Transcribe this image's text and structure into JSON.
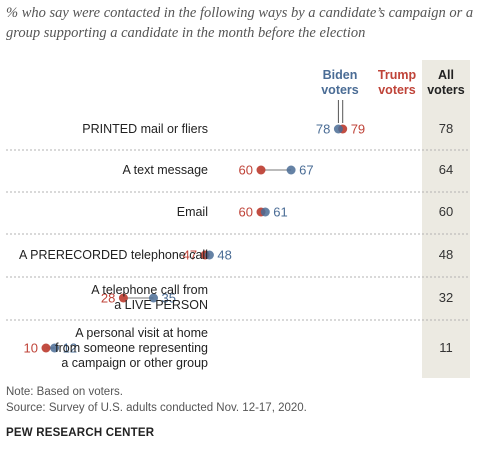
{
  "subtitle": "% who say were contacted in the following ways by a candidate’s campaign or a group supporting a candidate in the month before the election",
  "legend": {
    "biden": [
      "Biden",
      "voters"
    ],
    "trump": [
      "Trump",
      "voters"
    ],
    "all": [
      "All",
      "voters"
    ]
  },
  "colors": {
    "biden": "#4a6c95",
    "trump": "#bf4338",
    "divider": "#b3b3b3",
    "all_col": "#eceae2"
  },
  "chart_data": {
    "type": "scatter",
    "categories": [
      [
        "PRINTED mail or fliers"
      ],
      [
        "A text message"
      ],
      [
        "Email"
      ],
      [
        "A PRERECORDED telephone call"
      ],
      [
        "A telephone call from",
        "a LIVE PERSON"
      ],
      [
        "A personal visit at home",
        "from someone representing",
        "a campaign or other group"
      ]
    ],
    "series": [
      {
        "name": "Biden voters",
        "values": [
          78,
          67,
          61,
          48,
          35,
          12
        ]
      },
      {
        "name": "Trump voters",
        "values": [
          79,
          60,
          60,
          47,
          28,
          10
        ]
      },
      {
        "name": "All voters",
        "values": [
          78,
          64,
          60,
          48,
          32,
          11
        ]
      }
    ],
    "xlim": [
      0,
      100
    ],
    "grid": false,
    "legend": "top-right"
  },
  "footer": {
    "note": "Note: Based on voters.",
    "source": "Source: Survey of U.S. adults conducted Nov. 12-17, 2020.",
    "org": "PEW RESEARCH CENTER"
  }
}
